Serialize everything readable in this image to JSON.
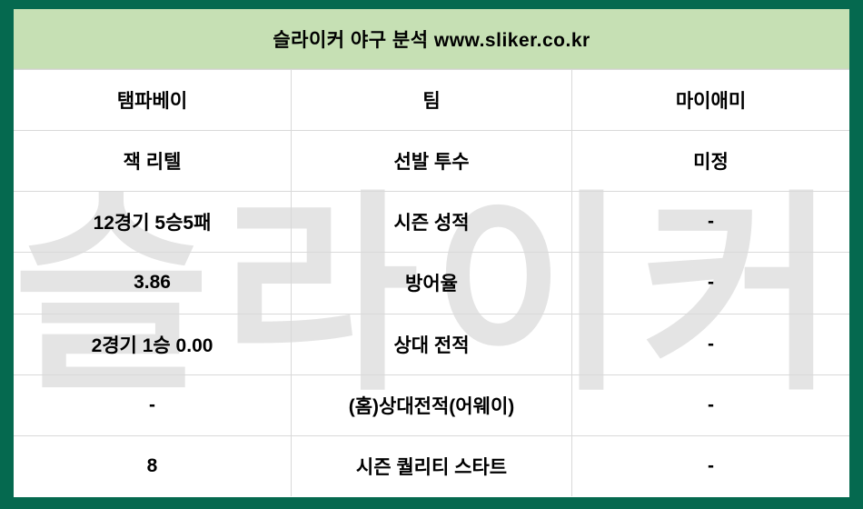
{
  "page": {
    "title": "슬라이커 야구 분석 www.sliker.co.kr",
    "watermark": "슬라이커"
  },
  "colors": {
    "frame_green": "#05694f",
    "header_green": "#c6e0b4",
    "grid_line": "#d9d9d9",
    "watermark_gray": "#e4e4e4",
    "text": "#000000"
  },
  "table": {
    "rows": [
      {
        "left": "탬파베이",
        "center": "팀",
        "right": "마이애미"
      },
      {
        "left": "잭 리텔",
        "center": "선발 투수",
        "right": "미정"
      },
      {
        "left": "12경기 5승5패",
        "center": "시즌 성적",
        "right": "-"
      },
      {
        "left": "3.86",
        "center": "방어율",
        "right": "-"
      },
      {
        "left": "2경기 1승 0.00",
        "center": "상대 전적",
        "right": "-"
      },
      {
        "left": "-",
        "center": "(홈)상대전적(어웨이)",
        "right": "-"
      },
      {
        "left": "8",
        "center": "시즌 퀄리티 스타트",
        "right": "-"
      }
    ]
  }
}
